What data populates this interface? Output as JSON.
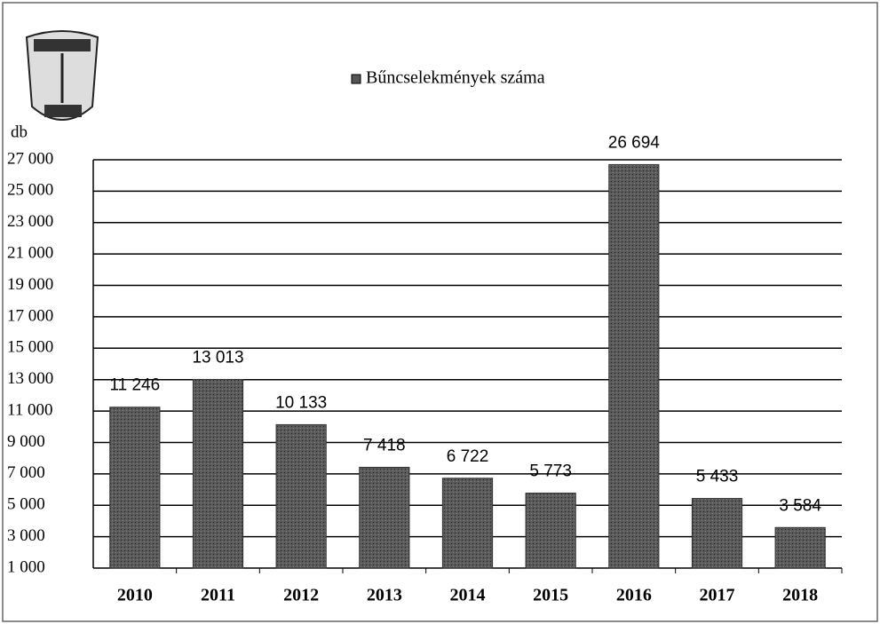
{
  "chart_data": {
    "type": "bar",
    "legend_label": "Bűncselekmények száma",
    "y_axis_label": "db",
    "categories": [
      "2010",
      "2011",
      "2012",
      "2013",
      "2014",
      "2015",
      "2016",
      "2017",
      "2018"
    ],
    "values": [
      11246,
      13013,
      10133,
      7418,
      6722,
      5773,
      26694,
      5433,
      3584
    ],
    "value_labels": [
      "11 246",
      "13 013",
      "10 133",
      "7 418",
      "6 722",
      "5 773",
      "26 694",
      "5 433",
      "3 584"
    ],
    "color": "#4a4a4a",
    "ylim": [
      1000,
      27000
    ],
    "yticks": [
      {
        "value": 1000,
        "label": "1 000"
      },
      {
        "value": 3000,
        "label": "3 000"
      },
      {
        "value": 5000,
        "label": "5 000"
      },
      {
        "value": 7000,
        "label": "7 000"
      },
      {
        "value": 9000,
        "label": "9 000"
      },
      {
        "value": 11000,
        "label": "11 000"
      },
      {
        "value": 13000,
        "label": "13 000"
      },
      {
        "value": 15000,
        "label": "15 000"
      },
      {
        "value": 17000,
        "label": "17 000"
      },
      {
        "value": 19000,
        "label": "19 000"
      },
      {
        "value": 21000,
        "label": "21 000"
      },
      {
        "value": 23000,
        "label": "23 000"
      },
      {
        "value": 25000,
        "label": "25 000"
      },
      {
        "value": 27000,
        "label": "27 000"
      }
    ],
    "grid": true,
    "legend_position": "top"
  }
}
